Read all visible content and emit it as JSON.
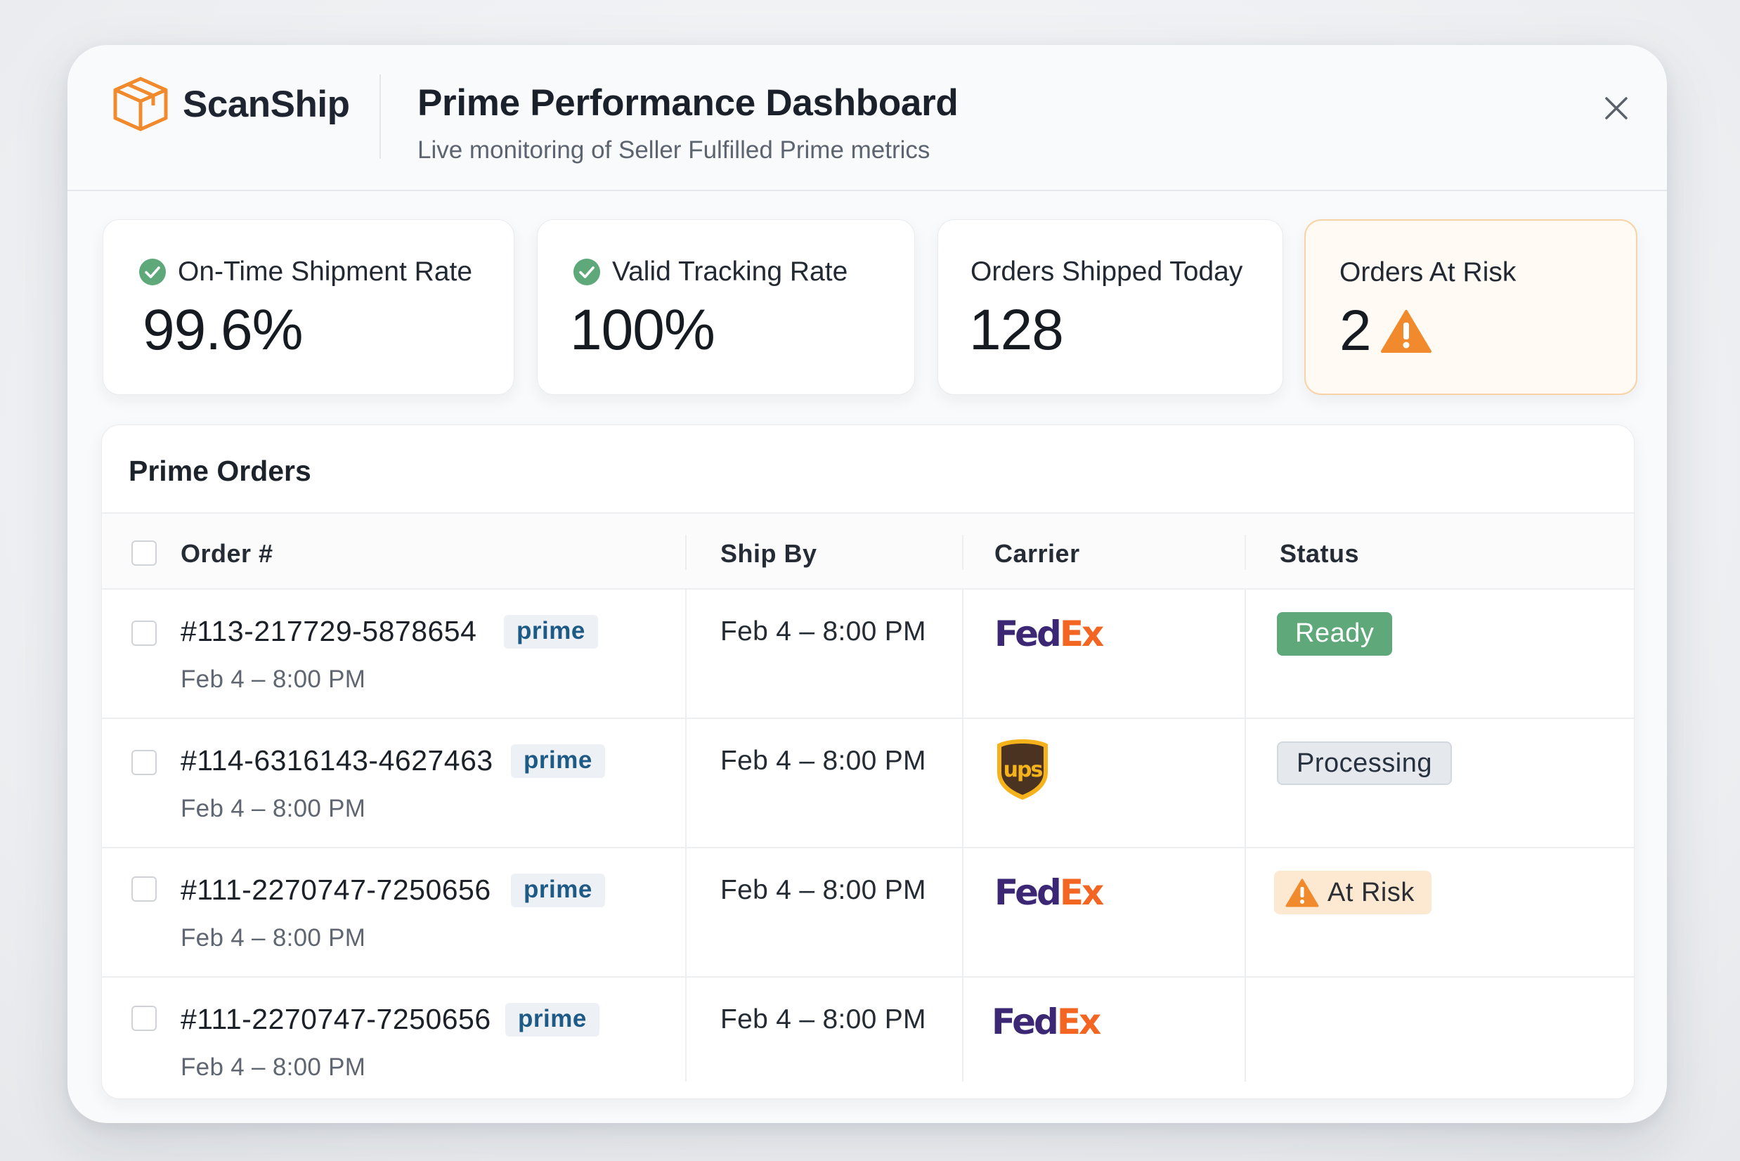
{
  "header": {
    "brand": "ScanShip",
    "title": "Prime Performance Dashboard",
    "subtitle": "Live monitoring of Seller Fulfilled Prime metrics"
  },
  "kpis": [
    {
      "label": "On-Time Shipment Rate",
      "value": "99.6%",
      "icon": "check-circle-icon"
    },
    {
      "label": "Valid Tracking Rate",
      "value": "100%",
      "icon": "check-circle-icon"
    },
    {
      "label": "Orders Shipped Today",
      "value": "128"
    },
    {
      "label": "Orders At Risk",
      "value": "2",
      "icon": "warning-icon"
    }
  ],
  "table": {
    "title": "Prime Orders",
    "columns": [
      "Order #",
      "Ship By",
      "Carrier",
      "Status"
    ],
    "rows": [
      {
        "order": "#113-217729-5878654",
        "tag": "prime",
        "date": "Feb 4 – 8:00 PM",
        "ship_by": "Feb 4 – 8:00 PM",
        "carrier": "FedEx",
        "status": "Ready"
      },
      {
        "order": "#114-6316143-4627463",
        "tag": "prime",
        "date": "Feb 4 – 8:00 PM",
        "ship_by": "Feb 4 – 8:00 PM",
        "carrier": "UPS",
        "status": "Processing"
      },
      {
        "order": "#111-2270747-7250656",
        "tag": "prime",
        "date": "Feb 4 – 8:00 PM",
        "ship_by": "Feb 4 – 8:00 PM",
        "carrier": "FedEx",
        "status": "At Risk"
      },
      {
        "order": "#111-2270747-7250656",
        "tag": "prime",
        "date": "Feb 4 – 8:00 PM",
        "ship_by": "Feb 4 – 8:00 PM",
        "carrier": "FedEx",
        "status": ""
      }
    ]
  },
  "logos": {
    "fedex": {
      "part1": "Fed",
      "part2": "Ex"
    },
    "ups": "ups"
  },
  "colors": {
    "accent_orange": "#f08a2c",
    "success_green": "#5ea87a",
    "prime_blue": "#1e5a86",
    "fedex_purple": "#3b2774",
    "fedex_orange": "#f26522",
    "ups_brown": "#4a3421",
    "ups_gold": "#f5b21b"
  }
}
